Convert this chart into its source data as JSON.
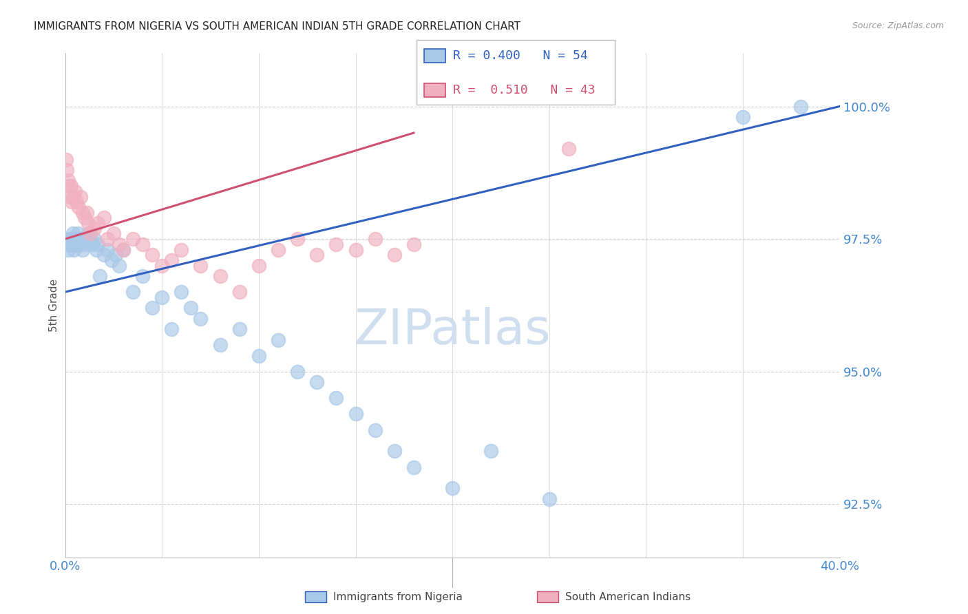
{
  "title": "IMMIGRANTS FROM NIGERIA VS SOUTH AMERICAN INDIAN 5TH GRADE CORRELATION CHART",
  "source": "Source: ZipAtlas.com",
  "ylabel": "5th Grade",
  "legend_blue_r": "R = 0.400",
  "legend_blue_n": "N = 54",
  "legend_pink_r": "R =  0.510",
  "legend_pink_n": "N = 43",
  "legend_blue_label": "Immigrants from Nigeria",
  "legend_pink_label": "South American Indians",
  "blue_color": "#a8c8e8",
  "pink_color": "#f0b0c0",
  "blue_line_color": "#3060c0",
  "pink_line_color": "#d05070",
  "axis_label_color": "#4488cc",
  "grid_color": "#cccccc",
  "xlim": [
    0.0,
    40.0
  ],
  "ylim": [
    91.5,
    101.0
  ],
  "yticks": [
    92.5,
    95.0,
    97.5,
    100.0
  ],
  "xticks": [
    0.0,
    5.0,
    10.0,
    15.0,
    20.0,
    25.0,
    30.0,
    35.0,
    40.0
  ],
  "blue_x": [
    0.1,
    0.15,
    0.2,
    0.25,
    0.3,
    0.35,
    0.4,
    0.45,
    0.5,
    0.55,
    0.6,
    0.65,
    0.7,
    0.8,
    0.9,
    1.0,
    1.1,
    1.2,
    1.3,
    1.4,
    1.5,
    1.6,
    1.7,
    1.8,
    2.0,
    2.2,
    2.4,
    2.6,
    2.8,
    3.0,
    3.5,
    4.0,
    4.5,
    5.0,
    5.5,
    6.0,
    6.5,
    7.0,
    8.0,
    9.0,
    10.0,
    11.0,
    12.0,
    13.0,
    14.0,
    15.0,
    16.0,
    17.0,
    18.0,
    20.0,
    22.0,
    25.0,
    35.0,
    38.0
  ],
  "blue_y": [
    97.4,
    97.3,
    97.5,
    97.4,
    97.4,
    97.5,
    97.6,
    97.3,
    97.5,
    97.4,
    97.4,
    97.6,
    97.5,
    97.4,
    97.3,
    97.5,
    97.4,
    97.6,
    97.5,
    97.4,
    97.5,
    97.3,
    97.4,
    96.8,
    97.2,
    97.3,
    97.1,
    97.2,
    97.0,
    97.3,
    96.5,
    96.8,
    96.2,
    96.4,
    95.8,
    96.5,
    96.2,
    96.0,
    95.5,
    95.8,
    95.3,
    95.6,
    95.0,
    94.8,
    94.5,
    94.2,
    93.9,
    93.5,
    93.2,
    92.8,
    93.5,
    92.6,
    99.8,
    100.0
  ],
  "pink_x": [
    0.05,
    0.1,
    0.15,
    0.2,
    0.25,
    0.3,
    0.35,
    0.4,
    0.5,
    0.6,
    0.7,
    0.8,
    0.9,
    1.0,
    1.1,
    1.2,
    1.3,
    1.5,
    1.7,
    2.0,
    2.2,
    2.5,
    2.8,
    3.0,
    3.5,
    4.0,
    4.5,
    5.0,
    5.5,
    6.0,
    7.0,
    8.0,
    9.0,
    10.0,
    11.0,
    12.0,
    13.0,
    14.0,
    15.0,
    16.0,
    17.0,
    18.0,
    26.0
  ],
  "pink_y": [
    99.0,
    98.8,
    98.6,
    98.5,
    98.3,
    98.5,
    98.2,
    98.3,
    98.4,
    98.2,
    98.1,
    98.3,
    98.0,
    97.9,
    98.0,
    97.8,
    97.6,
    97.7,
    97.8,
    97.9,
    97.5,
    97.6,
    97.4,
    97.3,
    97.5,
    97.4,
    97.2,
    97.0,
    97.1,
    97.3,
    97.0,
    96.8,
    96.5,
    97.0,
    97.3,
    97.5,
    97.2,
    97.4,
    97.3,
    97.5,
    97.2,
    97.4,
    99.2
  ],
  "blue_trend_x": [
    0.0,
    40.0
  ],
  "blue_trend_y": [
    96.5,
    100.0
  ],
  "pink_trend_x": [
    0.0,
    18.0
  ],
  "pink_trend_y": [
    97.5,
    99.5
  ],
  "watermark": "ZIPatlas",
  "watermark_color": "#d0dff0"
}
